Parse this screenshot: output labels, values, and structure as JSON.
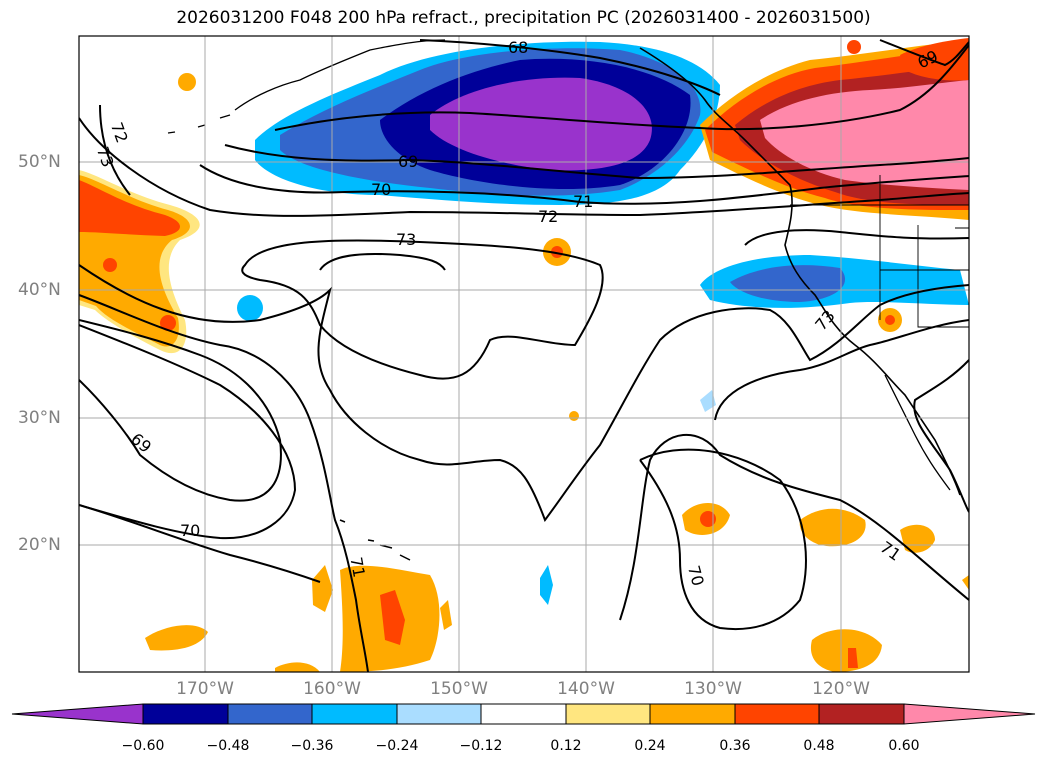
{
  "title": "2026031200 F048 200 hPa refract., precipitation PC (2026031400 - 2026031500)",
  "map": {
    "lon_labels": [
      "170°W",
      "160°W",
      "150°W",
      "140°W",
      "130°W",
      "120°W"
    ],
    "lat_labels": [
      "50°N",
      "40°N",
      "30°N",
      "20°N"
    ],
    "contour_labels": [
      "68",
      "69",
      "70",
      "71",
      "72",
      "73",
      "72",
      "73",
      "69",
      "70",
      "71",
      "70",
      "71",
      "73",
      "69"
    ]
  },
  "colorbar": {
    "ticks": [
      "−0.60",
      "−0.48",
      "−0.36",
      "−0.24",
      "−0.12",
      "0.12",
      "0.24",
      "0.36",
      "0.48",
      "0.60"
    ],
    "colors": [
      "#9933cc",
      "#000099",
      "#3366cc",
      "#00bbff",
      "#aaddff",
      "#ffffff",
      "#ffe680",
      "#ffaa00",
      "#ff4400",
      "#b22222",
      "#ff88aa"
    ]
  }
}
